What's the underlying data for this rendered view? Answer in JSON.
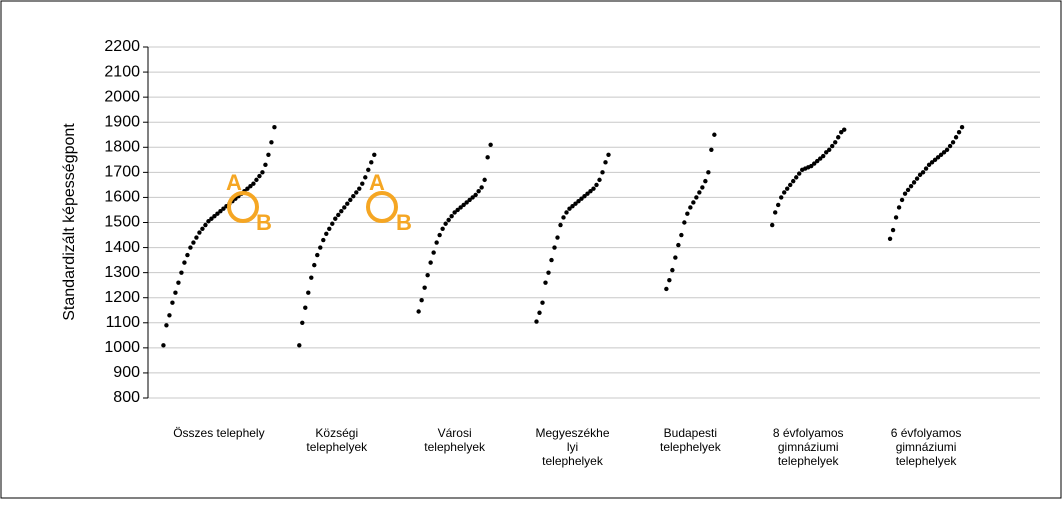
{
  "chart_data": {
    "type": "dot",
    "y_label": "Standardizált képességpont",
    "categories": [
      [
        "Összes telephely"
      ],
      [
        "Községi",
        "telephelyek"
      ],
      [
        "Városi",
        "telephelyek"
      ],
      [
        "Megyeszékhe",
        "lyi",
        "telephelyek"
      ],
      [
        "Budapesti",
        "telephelyek"
      ],
      [
        "8 évfolyamos",
        "gimnáziumi",
        "telephelyek"
      ],
      [
        "6 évfolyamos",
        "gimnáziumi",
        "telephelyek"
      ]
    ],
    "values": [
      [
        1010,
        1090,
        1130,
        1180,
        1220,
        1260,
        1300,
        1340,
        1370,
        1400,
        1420,
        1440,
        1460,
        1475,
        1490,
        1505,
        1515,
        1525,
        1535,
        1545,
        1555,
        1565,
        1575,
        1585,
        1595,
        1605,
        1615,
        1625,
        1635,
        1645,
        1655,
        1670,
        1685,
        1700,
        1730,
        1770,
        1820,
        1880
      ],
      [
        1010,
        1100,
        1160,
        1220,
        1280,
        1330,
        1370,
        1400,
        1430,
        1455,
        1475,
        1495,
        1515,
        1530,
        1545,
        1560,
        1575,
        1590,
        1605,
        1620,
        1635,
        1655,
        1680,
        1710,
        1740,
        1770
      ],
      [
        1145,
        1190,
        1240,
        1290,
        1340,
        1380,
        1420,
        1450,
        1475,
        1495,
        1510,
        1525,
        1540,
        1550,
        1560,
        1570,
        1580,
        1590,
        1600,
        1610,
        1625,
        1640,
        1670,
        1760,
        1810
      ],
      [
        1105,
        1140,
        1180,
        1260,
        1300,
        1350,
        1400,
        1440,
        1490,
        1520,
        1540,
        1555,
        1565,
        1575,
        1585,
        1595,
        1605,
        1615,
        1625,
        1635,
        1650,
        1670,
        1700,
        1740,
        1770
      ],
      [
        1235,
        1270,
        1310,
        1360,
        1410,
        1450,
        1500,
        1535,
        1560,
        1580,
        1600,
        1620,
        1640,
        1665,
        1700,
        1790,
        1850
      ],
      [
        1490,
        1540,
        1570,
        1600,
        1620,
        1635,
        1650,
        1665,
        1680,
        1695,
        1710,
        1715,
        1720,
        1725,
        1735,
        1745,
        1755,
        1765,
        1780,
        1790,
        1805,
        1820,
        1840,
        1860,
        1870
      ],
      [
        1435,
        1470,
        1520,
        1560,
        1590,
        1615,
        1630,
        1645,
        1660,
        1675,
        1690,
        1700,
        1715,
        1730,
        1740,
        1750,
        1760,
        1770,
        1780,
        1790,
        1805,
        1820,
        1840,
        1860,
        1880
      ]
    ],
    "color": "#000000",
    "annotations": [
      "A",
      "B",
      "A",
      "B"
    ],
    "annotation_color": "#f5a623",
    "ylim": [
      800,
      2200
    ],
    "yticks": [
      800,
      900,
      1000,
      1100,
      1200,
      1300,
      1400,
      1500,
      1600,
      1700,
      1800,
      1900,
      2000,
      2100,
      2200
    ],
    "grid": true
  }
}
